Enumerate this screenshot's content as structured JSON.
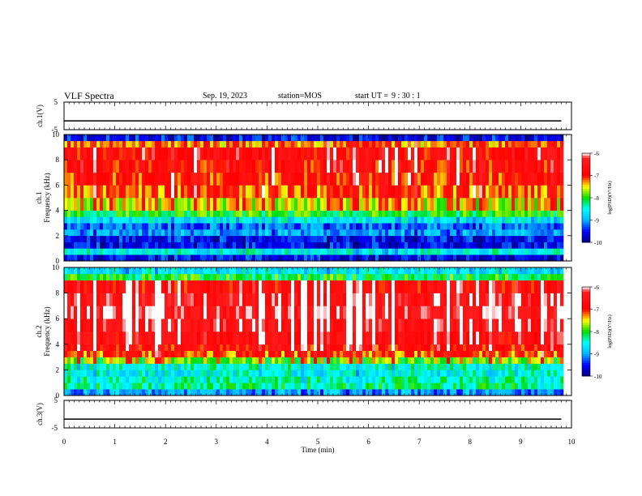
{
  "header": {
    "title": "VLF Spectra",
    "date": "Sep. 19, 2023",
    "station": "station=MOS",
    "start_label": "start UT =",
    "start_time": "9 : 30 : 1"
  },
  "colors": {
    "spectrum_low": "#00007f",
    "spectrum_blue": "#0000ff",
    "spectrum_cyan": "#00ffff",
    "spectrum_green": "#00e000",
    "spectrum_yellow": "#ffff00",
    "spectrum_red": "#ff0000",
    "spectrum_white": "#ffffff"
  },
  "chart_data": [
    {
      "type": "line",
      "panel": "ch1-waveform",
      "ylabel": "ch.1(V)",
      "ylim": [
        -5,
        5
      ],
      "yticks": [
        "5",
        "-5"
      ],
      "x": [
        0,
        1,
        2,
        3,
        4,
        5,
        6,
        7,
        8,
        9,
        9.8
      ],
      "values": [
        -1.8,
        -1.8,
        -1.8,
        -1.8,
        -1.8,
        -1.8,
        -1.8,
        -1.8,
        -1.8,
        -1.8,
        -1.8
      ]
    },
    {
      "type": "heatmap",
      "panel": "ch1-spectrogram",
      "ylabel": "ch.1 Frequency (kHz)",
      "ylim": [
        0,
        10
      ],
      "yticks": [
        "0",
        "2",
        "4",
        "6",
        "8",
        "10"
      ],
      "xlim": [
        0,
        9.8
      ],
      "frequency_bands_khz": [
        0,
        0.5,
        1,
        1.5,
        2,
        2.5,
        3,
        3.5,
        4,
        5,
        6,
        7,
        8,
        9,
        9.5,
        10
      ],
      "band_log_psd": [
        -9.5,
        -8.5,
        -9.5,
        -9.5,
        -9.0,
        -9.2,
        -8.6,
        -8.0,
        -7.6,
        -7.2,
        -7.0,
        -6.9,
        -6.8,
        -7.3,
        -9.5
      ],
      "colorbar": {
        "label": "log(PSD)(V²/Hz)",
        "range": [
          -10,
          -6
        ],
        "ticks": [
          "-6",
          "-7",
          "-8",
          "-9",
          "-10"
        ]
      }
    },
    {
      "type": "heatmap",
      "panel": "ch2-spectrogram",
      "ylabel": "ch.2 Frequency (kHz)",
      "ylim": [
        0,
        10
      ],
      "yticks": [
        "0",
        "2",
        "4",
        "6",
        "8",
        "10"
      ],
      "xlim": [
        0,
        9.8
      ],
      "frequency_bands_khz": [
        0,
        0.5,
        1,
        1.5,
        2,
        2.5,
        3,
        3.5,
        4,
        5,
        6,
        7,
        8,
        9,
        9.5,
        10
      ],
      "band_log_psd": [
        -9.0,
        -8.2,
        -8.3,
        -8.5,
        -8.4,
        -7.9,
        -7.2,
        -6.9,
        -6.7,
        -6.5,
        -6.4,
        -6.5,
        -6.8,
        -8.0,
        -8.6
      ],
      "colorbar": {
        "label": "log(PSD)(V²/Hz)",
        "range": [
          -10,
          -6
        ],
        "ticks": [
          "-6",
          "-7",
          "-8",
          "-9",
          "-10"
        ]
      }
    },
    {
      "type": "line",
      "panel": "ch3-waveform",
      "ylabel": "ch.3(V)",
      "ylim": [
        -5,
        5
      ],
      "yticks": [
        "5",
        "-5"
      ],
      "x": [
        0,
        1,
        2,
        3,
        4,
        5,
        6,
        7,
        8,
        9,
        9.8
      ],
      "values": [
        -1.8,
        -1.8,
        -1.8,
        -1.8,
        -1.8,
        -1.8,
        -1.8,
        -1.8,
        -1.8,
        -1.8,
        -1.8
      ]
    }
  ],
  "x_axis": {
    "label": "Time (min)",
    "ticks": [
      "0",
      "1",
      "2",
      "3",
      "4",
      "5",
      "6",
      "7",
      "8",
      "9",
      "10"
    ],
    "range": [
      0,
      10
    ]
  }
}
